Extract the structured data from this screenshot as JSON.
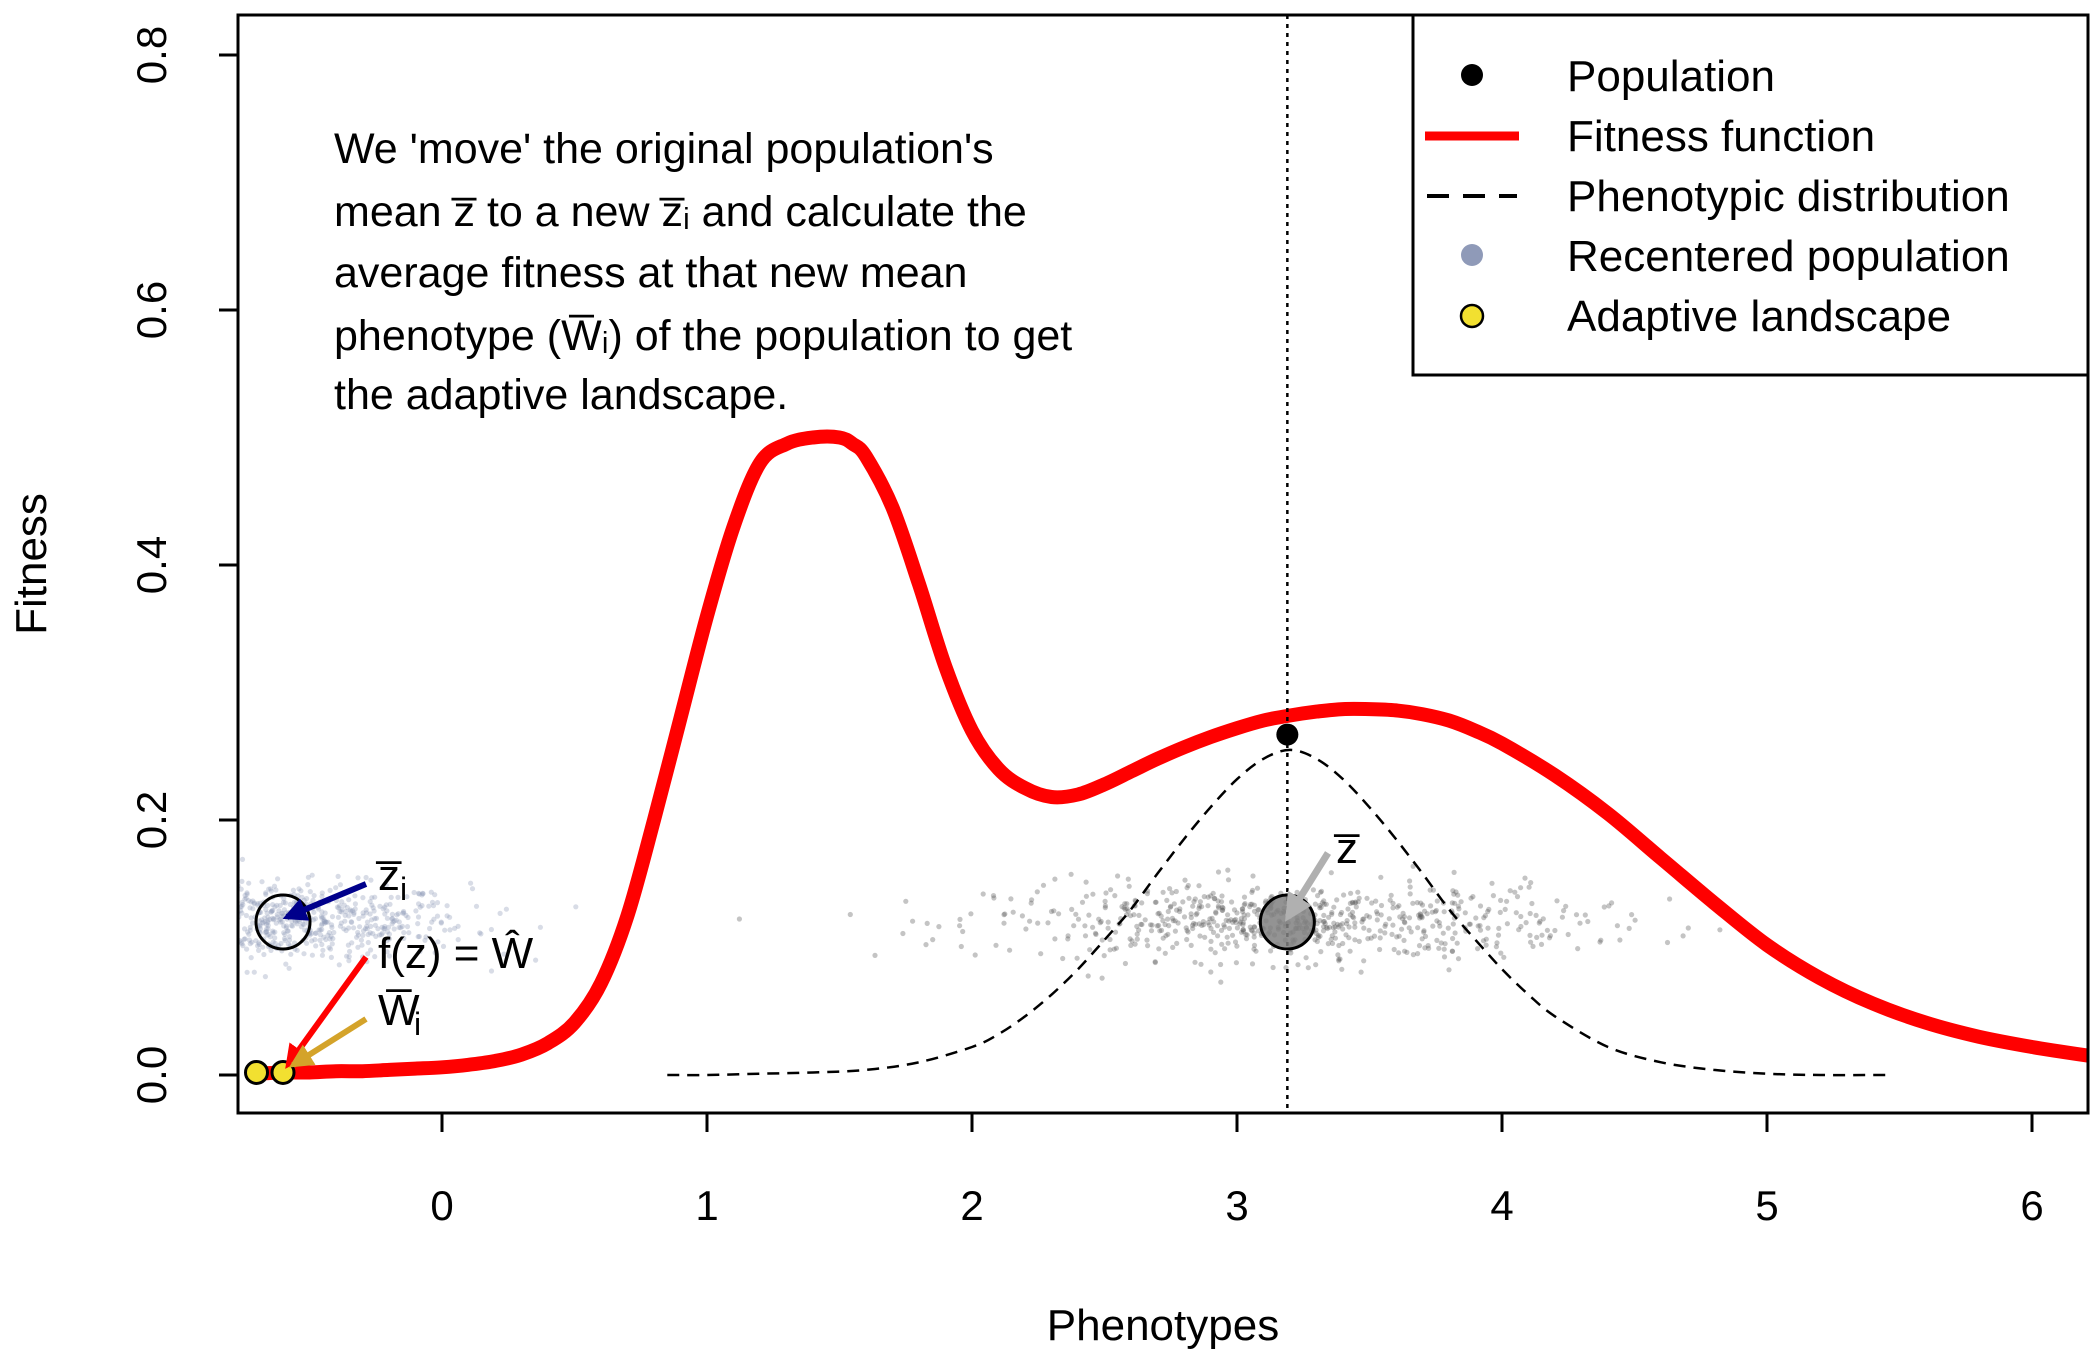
{
  "chart_data": {
    "type": "line",
    "title": "",
    "xlabel": "Phenotypes",
    "ylabel": "Fitness",
    "xlim": [
      -0.76,
      6.25
    ],
    "ylim": [
      -0.03,
      0.83
    ],
    "x_ticks": [
      0,
      1,
      2,
      3,
      4,
      5,
      6
    ],
    "x_tick_labels": [
      "0",
      "1",
      "2",
      "3",
      "4",
      "5",
      "6"
    ],
    "y_ticks": [
      0.0,
      0.2,
      0.4,
      0.6,
      0.8
    ],
    "y_tick_labels": [
      "0.0",
      "0.2",
      "0.4",
      "0.6",
      "0.8"
    ],
    "grid": false,
    "legend_position": "top-right",
    "legend": [
      {
        "label": "Population",
        "kind": "point",
        "color": "#000000"
      },
      {
        "label": "Fitness function",
        "kind": "line",
        "color": "#ff0000"
      },
      {
        "label": "Phenotypic distribution",
        "kind": "dashed",
        "color": "#000000"
      },
      {
        "label": "Recentered population",
        "kind": "point",
        "color": "#8f9ab8"
      },
      {
        "label": "Adaptive landscape",
        "kind": "point",
        "color": "#f2e030"
      }
    ],
    "colors": {
      "fitness": "#ff0000",
      "population": "#000000",
      "recentered": "#8f9ab8",
      "adaptive": "#f2e030",
      "arrow_zi": "#00008b",
      "arrow_f": "#ff0000",
      "arrow_w": "#d4a32a",
      "arrow_z": "#b0b0b0",
      "mean_circle": "#808080"
    },
    "series": [
      {
        "name": "Fitness function",
        "x": [
          -0.7,
          -0.6,
          -0.5,
          -0.4,
          -0.3,
          -0.2,
          -0.1,
          0.0,
          0.1,
          0.2,
          0.3,
          0.4,
          0.5,
          0.6,
          0.7,
          0.8,
          0.9,
          1.0,
          1.1,
          1.2,
          1.3,
          1.4,
          1.5,
          1.55,
          1.6,
          1.7,
          1.8,
          1.9,
          2.0,
          2.1,
          2.2,
          2.3,
          2.4,
          2.5,
          2.6,
          2.7,
          2.8,
          2.9,
          3.0,
          3.1,
          3.2,
          3.3,
          3.4,
          3.5,
          3.6,
          3.7,
          3.8,
          3.9,
          4.0,
          4.2,
          4.4,
          4.6,
          4.8,
          5.0,
          5.2,
          5.4,
          5.6,
          5.8,
          6.0,
          6.25
        ],
        "y": [
          0.001,
          0.002,
          0.002,
          0.003,
          0.003,
          0.004,
          0.005,
          0.006,
          0.008,
          0.011,
          0.016,
          0.025,
          0.041,
          0.072,
          0.125,
          0.2,
          0.28,
          0.36,
          0.43,
          0.48,
          0.495,
          0.5,
          0.5,
          0.495,
          0.485,
          0.445,
          0.385,
          0.32,
          0.27,
          0.24,
          0.225,
          0.218,
          0.22,
          0.228,
          0.238,
          0.248,
          0.257,
          0.265,
          0.272,
          0.278,
          0.282,
          0.285,
          0.287,
          0.287,
          0.286,
          0.283,
          0.278,
          0.27,
          0.26,
          0.235,
          0.205,
          0.17,
          0.135,
          0.102,
          0.076,
          0.056,
          0.041,
          0.03,
          0.022,
          0.014
        ]
      },
      {
        "name": "Phenotypic distribution",
        "x": [
          0.85,
          1.0,
          1.2,
          1.4,
          1.6,
          1.8,
          2.0,
          2.1,
          2.2,
          2.3,
          2.4,
          2.5,
          2.6,
          2.7,
          2.8,
          2.9,
          3.0,
          3.1,
          3.2,
          3.3,
          3.4,
          3.5,
          3.6,
          3.7,
          3.8,
          3.9,
          4.0,
          4.1,
          4.2,
          4.4,
          4.6,
          4.8,
          5.0,
          5.2,
          5.45
        ],
        "y": [
          0.0,
          0.0,
          0.001,
          0.002,
          0.004,
          0.01,
          0.022,
          0.032,
          0.046,
          0.063,
          0.083,
          0.106,
          0.13,
          0.158,
          0.185,
          0.21,
          0.232,
          0.248,
          0.255,
          0.248,
          0.232,
          0.21,
          0.185,
          0.158,
          0.13,
          0.106,
          0.083,
          0.063,
          0.046,
          0.022,
          0.01,
          0.004,
          0.001,
          0.0,
          0.0
        ]
      }
    ],
    "points": [
      {
        "name": "Population",
        "x": 3.19,
        "y": 0.267
      },
      {
        "name": "Adaptive landscape",
        "x": -0.7,
        "y": 0.002
      },
      {
        "name": "Adaptive landscape",
        "x": -0.6,
        "y": 0.002
      }
    ],
    "mean_line_x": 3.19,
    "scatter_clouds": [
      {
        "name": "Recentered population",
        "center_x": -0.6,
        "sd_x": 0.35,
        "y": 0.12,
        "y_jitter": 0.03
      },
      {
        "name": "Population",
        "center_x": 3.19,
        "sd_x": 0.55,
        "y": 0.12,
        "y_jitter": 0.03
      }
    ],
    "annotations": {
      "note_lines": [
        "We 'move' the original population's",
        "mean z̅ to a new z̅ᵢ and calculate the",
        "average fitness at that new mean",
        "phenotype (W̅ᵢ) of the population to get",
        "the adaptive landscape."
      ],
      "zi_label": "z̅",
      "zi_sub": "i",
      "fz_label": "f(z) = Ŵ",
      "wi_label": "W̅",
      "wi_sub": "i",
      "z_label": "z̅"
    }
  }
}
